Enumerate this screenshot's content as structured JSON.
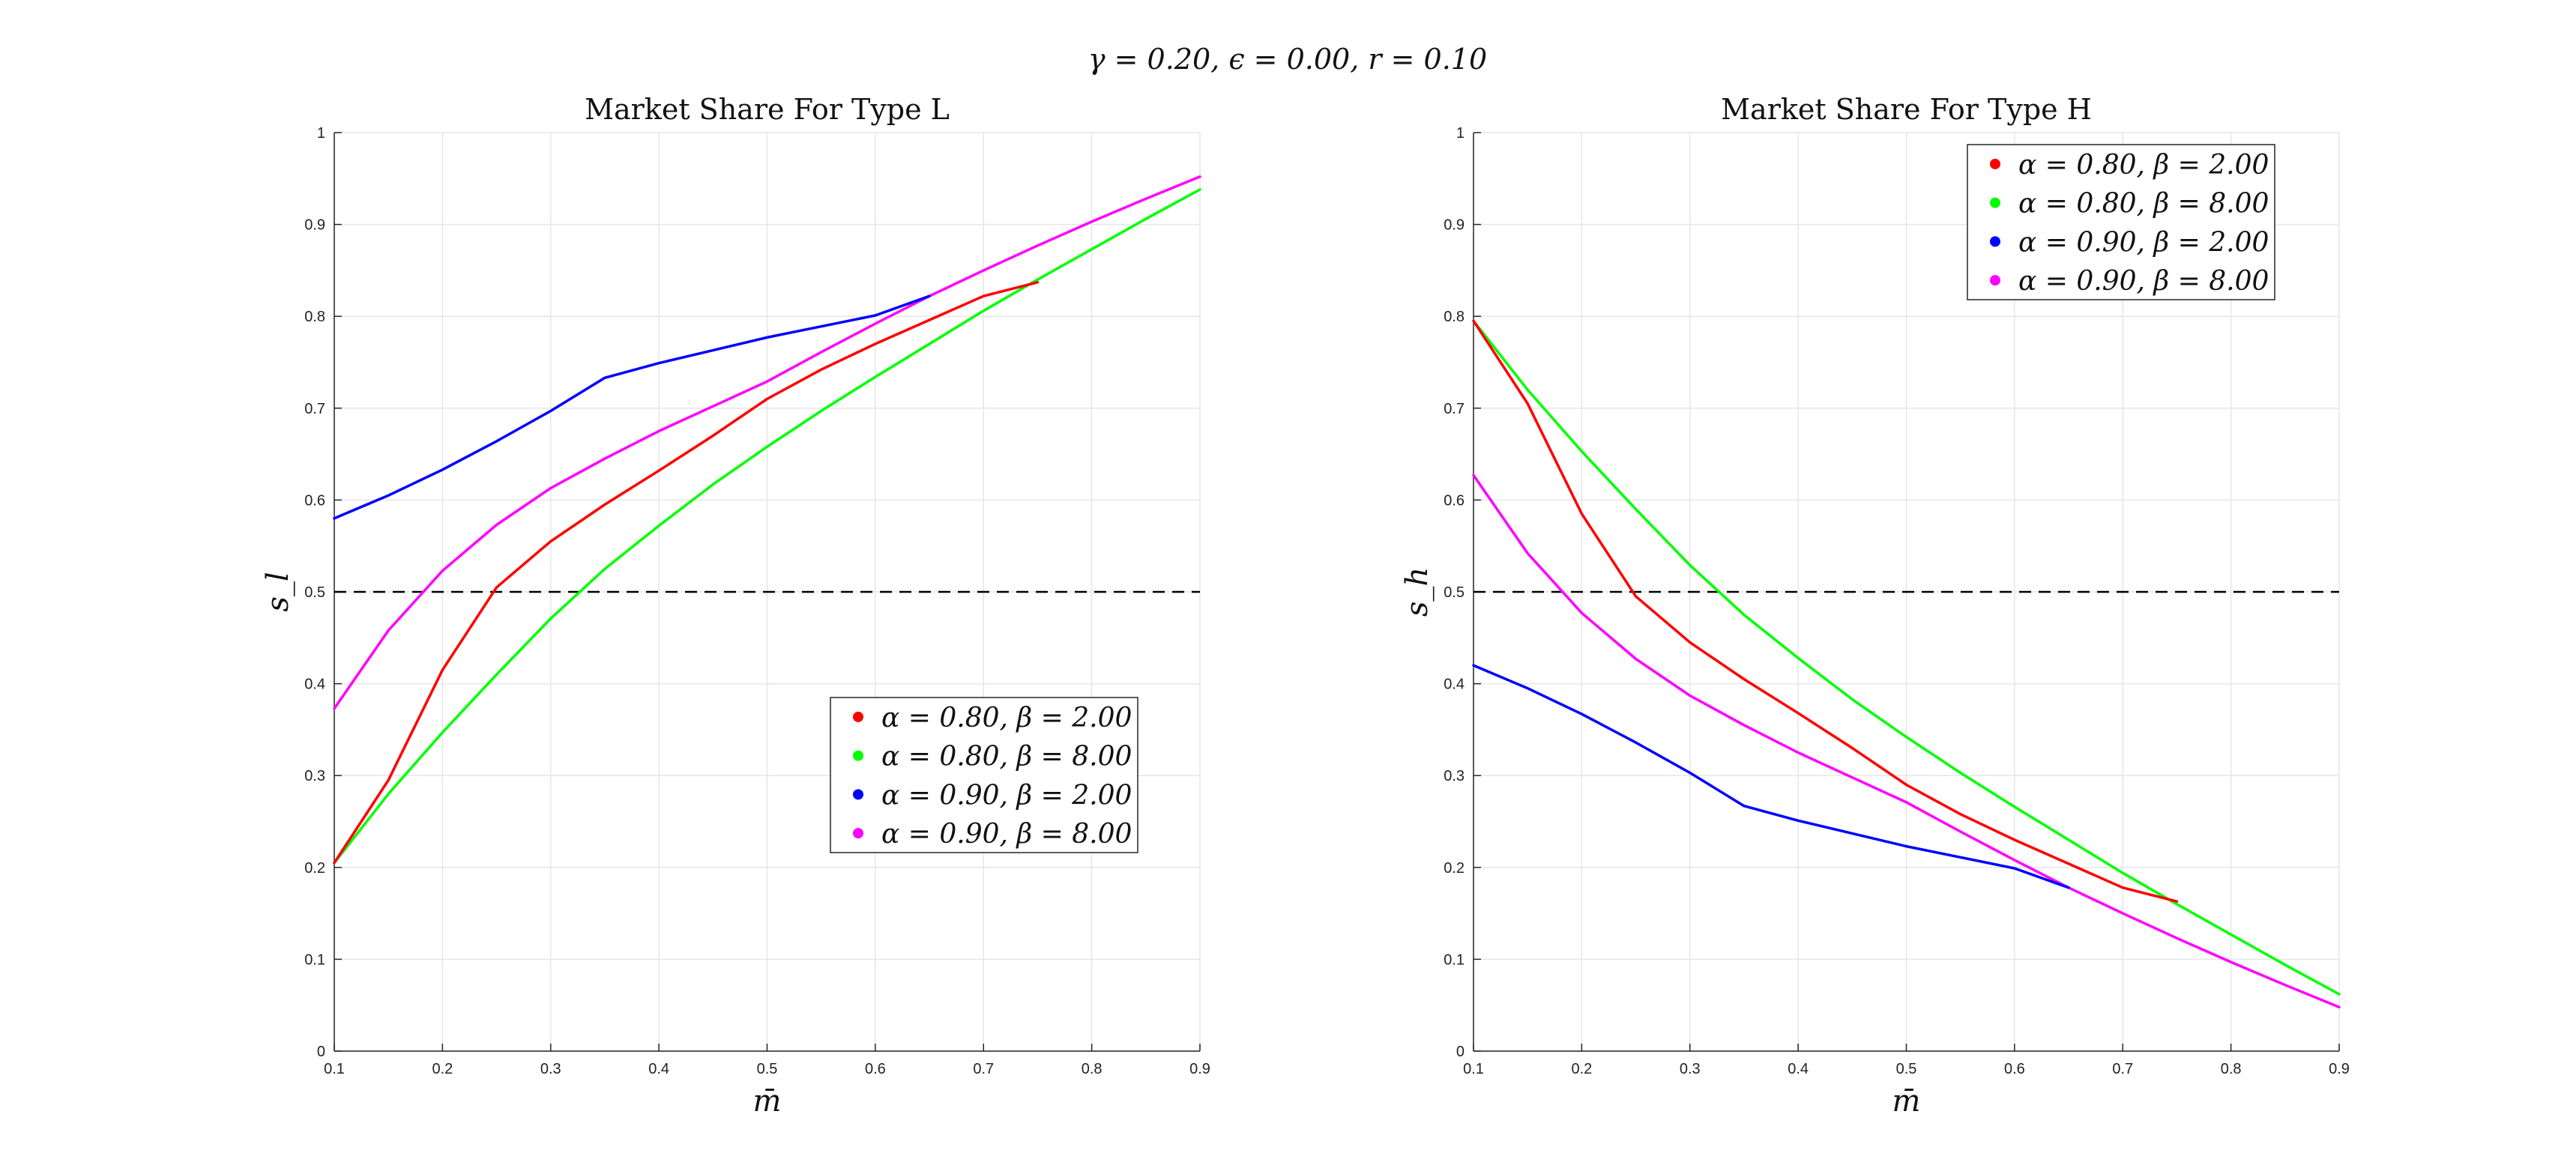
{
  "figure": {
    "suptitle": "γ = 0.20, ϵ = 0.00, r = 0.10"
  },
  "chart_data": [
    {
      "type": "line",
      "title": "Market Share For Type L",
      "xlabel": "m̄",
      "ylabel": "s_l",
      "xlim": [
        0.1,
        0.9
      ],
      "ylim": [
        0,
        1
      ],
      "xticks": [
        "0.1",
        "0.2",
        "0.3",
        "0.4",
        "0.5",
        "0.6",
        "0.7",
        "0.8",
        "0.9"
      ],
      "yticks": [
        "0",
        "0.1",
        "0.2",
        "0.3",
        "0.4",
        "0.5",
        "0.6",
        "0.7",
        "0.8",
        "0.9",
        "1"
      ],
      "grid": true,
      "legend_position": "lower-right",
      "reference_line": {
        "y": 0.5,
        "style": "dashed",
        "color": "#000000"
      },
      "series": [
        {
          "name": "α = 0.80, β = 2.00",
          "color": "#ff0000",
          "x": [
            0.1,
            0.15,
            0.2,
            0.25,
            0.3,
            0.35,
            0.4,
            0.45,
            0.5,
            0.55,
            0.6,
            0.65,
            0.7,
            0.75
          ],
          "y": [
            0.205,
            0.295,
            0.415,
            0.505,
            0.555,
            0.595,
            0.632,
            0.67,
            0.71,
            0.742,
            0.77,
            0.796,
            0.822,
            0.837
          ]
        },
        {
          "name": "α = 0.80, β = 8.00",
          "color": "#00ff00",
          "x": [
            0.1,
            0.15,
            0.2,
            0.25,
            0.3,
            0.35,
            0.4,
            0.45,
            0.5,
            0.55,
            0.6,
            0.65,
            0.7,
            0.75,
            0.8,
            0.85,
            0.9
          ],
          "y": [
            0.205,
            0.28,
            0.347,
            0.41,
            0.471,
            0.525,
            0.572,
            0.617,
            0.658,
            0.697,
            0.734,
            0.77,
            0.806,
            0.84,
            0.873,
            0.906,
            0.938
          ]
        },
        {
          "name": "α = 0.90, β = 2.00",
          "color": "#0000ff",
          "x": [
            0.1,
            0.15,
            0.2,
            0.25,
            0.3,
            0.35,
            0.4,
            0.45,
            0.5,
            0.55,
            0.6,
            0.65
          ],
          "y": [
            0.58,
            0.605,
            0.633,
            0.664,
            0.697,
            0.733,
            0.749,
            0.763,
            0.777,
            0.789,
            0.801,
            0.822
          ]
        },
        {
          "name": "α = 0.90, β = 8.00",
          "color": "#ff00ff",
          "x": [
            0.1,
            0.15,
            0.2,
            0.25,
            0.3,
            0.35,
            0.4,
            0.45,
            0.5,
            0.55,
            0.6,
            0.65,
            0.7,
            0.75,
            0.8,
            0.85,
            0.9
          ],
          "y": [
            0.373,
            0.458,
            0.523,
            0.573,
            0.613,
            0.645,
            0.675,
            0.702,
            0.729,
            0.761,
            0.792,
            0.822,
            0.85,
            0.877,
            0.903,
            0.928,
            0.952
          ]
        }
      ]
    },
    {
      "type": "line",
      "title": "Market Share For Type H",
      "xlabel": "m̄",
      "ylabel": "s_h",
      "xlim": [
        0.1,
        0.9
      ],
      "ylim": [
        0,
        1
      ],
      "xticks": [
        "0.1",
        "0.2",
        "0.3",
        "0.4",
        "0.5",
        "0.6",
        "0.7",
        "0.8",
        "0.9"
      ],
      "yticks": [
        "0",
        "0.1",
        "0.2",
        "0.3",
        "0.4",
        "0.5",
        "0.6",
        "0.7",
        "0.8",
        "0.9",
        "1"
      ],
      "grid": true,
      "legend_position": "top-right",
      "reference_line": {
        "y": 0.5,
        "style": "dashed",
        "color": "#000000"
      },
      "series": [
        {
          "name": "α = 0.80, β = 2.00",
          "color": "#ff0000",
          "x": [
            0.1,
            0.15,
            0.2,
            0.25,
            0.3,
            0.35,
            0.4,
            0.45,
            0.5,
            0.55,
            0.6,
            0.65,
            0.7,
            0.75
          ],
          "y": [
            0.795,
            0.705,
            0.585,
            0.495,
            0.445,
            0.405,
            0.368,
            0.33,
            0.29,
            0.258,
            0.23,
            0.204,
            0.178,
            0.163
          ]
        },
        {
          "name": "α = 0.80, β = 8.00",
          "color": "#00ff00",
          "x": [
            0.1,
            0.15,
            0.2,
            0.25,
            0.3,
            0.35,
            0.4,
            0.45,
            0.5,
            0.55,
            0.6,
            0.65,
            0.7,
            0.75,
            0.8,
            0.85,
            0.9
          ],
          "y": [
            0.795,
            0.72,
            0.653,
            0.59,
            0.529,
            0.475,
            0.428,
            0.383,
            0.342,
            0.303,
            0.266,
            0.23,
            0.194,
            0.16,
            0.127,
            0.094,
            0.062
          ]
        },
        {
          "name": "α = 0.90, β = 2.00",
          "color": "#0000ff",
          "x": [
            0.1,
            0.15,
            0.2,
            0.25,
            0.3,
            0.35,
            0.4,
            0.45,
            0.5,
            0.55,
            0.6,
            0.65
          ],
          "y": [
            0.42,
            0.395,
            0.367,
            0.336,
            0.303,
            0.267,
            0.251,
            0.237,
            0.223,
            0.211,
            0.199,
            0.178
          ]
        },
        {
          "name": "α = 0.90, β = 8.00",
          "color": "#ff00ff",
          "x": [
            0.1,
            0.15,
            0.2,
            0.25,
            0.3,
            0.35,
            0.4,
            0.45,
            0.5,
            0.55,
            0.6,
            0.65,
            0.7,
            0.75,
            0.8,
            0.85,
            0.9
          ],
          "y": [
            0.627,
            0.542,
            0.477,
            0.427,
            0.387,
            0.355,
            0.325,
            0.298,
            0.271,
            0.239,
            0.208,
            0.178,
            0.15,
            0.123,
            0.097,
            0.072,
            0.048
          ]
        }
      ]
    }
  ]
}
